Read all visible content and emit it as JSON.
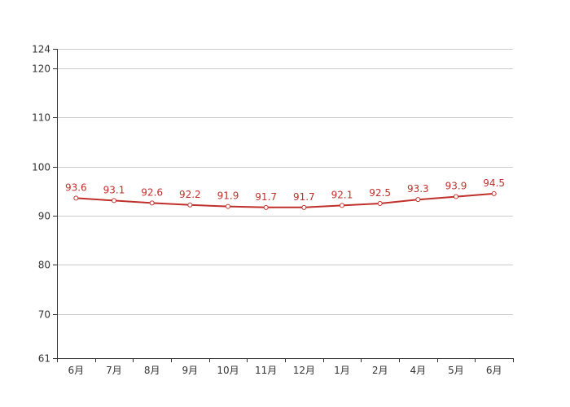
{
  "chart_data": {
    "type": "line",
    "categories": [
      "6月",
      "7月",
      "8月",
      "9月",
      "10月",
      "11月",
      "12月",
      "1月",
      "2月",
      "4月",
      "5月",
      "6月"
    ],
    "series": [
      {
        "values": [
          93.6,
          93.1,
          92.6,
          92.2,
          91.9,
          91.7,
          91.7,
          92.1,
          92.5,
          93.3,
          93.9,
          94.5
        ]
      }
    ],
    "ylim": [
      61,
      124
    ],
    "y_ticks": [
      61,
      70,
      80,
      90,
      100,
      110,
      120,
      124
    ],
    "grid": true,
    "data_labels": true,
    "line_color": "#c0302b"
  }
}
